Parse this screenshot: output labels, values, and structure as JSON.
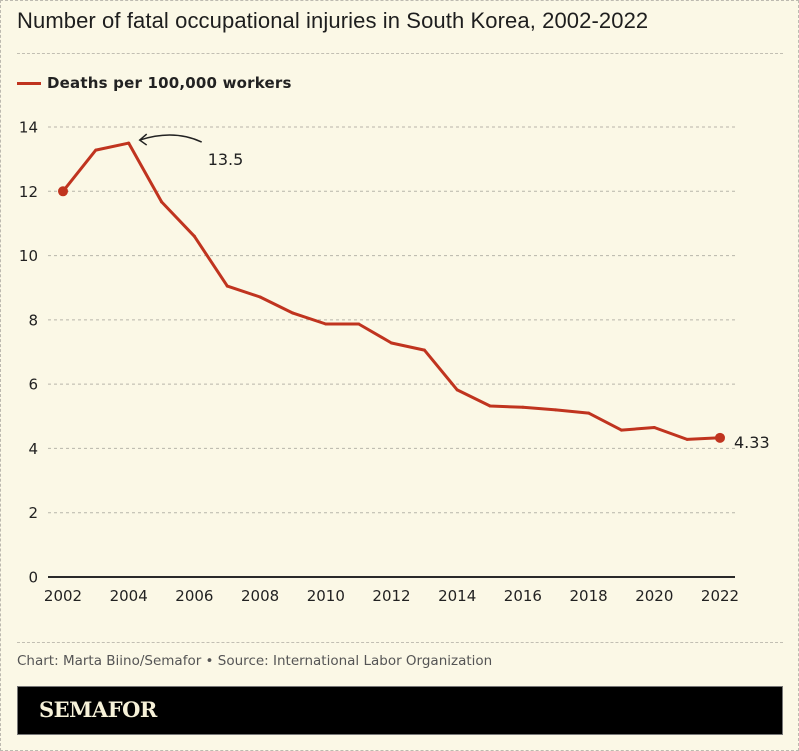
{
  "header": {
    "title": "Number of fatal occupational injuries in South Korea, 2002-2022"
  },
  "legend": {
    "label": "Deaths per 100,000 workers"
  },
  "footer": {
    "credit": "Chart: Marta Biino/Semafor • Source: International Labor Organization",
    "brand": "SEMAFOR"
  },
  "colors": {
    "background": "#fbf8e6",
    "line": "#c0341f",
    "text": "#222222",
    "grid": "#b8b5aa",
    "brandbar": "#000000"
  },
  "chart_data": {
    "type": "line",
    "title": "Number of fatal occupational injuries in South Korea, 2002-2022",
    "xlabel": "",
    "ylabel": "",
    "x": [
      2002,
      2003,
      2004,
      2005,
      2006,
      2007,
      2008,
      2009,
      2010,
      2011,
      2012,
      2013,
      2014,
      2015,
      2016,
      2017,
      2018,
      2019,
      2020,
      2021,
      2022
    ],
    "series": [
      {
        "name": "Deaths per 100,000 workers",
        "values": [
          12.0,
          13.28,
          13.5,
          11.67,
          10.6,
          9.05,
          8.71,
          8.21,
          7.87,
          7.87,
          7.28,
          7.06,
          5.82,
          5.32,
          5.28,
          5.2,
          5.1,
          4.57,
          4.65,
          4.28,
          4.33
        ]
      }
    ],
    "xlim": [
      2002,
      2022
    ],
    "ylim": [
      0,
      14
    ],
    "xticks": [
      "2002",
      "2004",
      "2006",
      "2008",
      "2010",
      "2012",
      "2014",
      "2016",
      "2018",
      "2020",
      "2022"
    ],
    "yticks": [
      "0",
      "2",
      "4",
      "6",
      "8",
      "10",
      "12",
      "14"
    ],
    "grid": true,
    "legend_position": "top-left",
    "annotations": [
      {
        "x": 2004,
        "y": 13.5,
        "text": "13.5",
        "style": "curved-arrow"
      },
      {
        "x": 2022,
        "y": 4.33,
        "text": "4.33",
        "style": "end-label"
      }
    ],
    "markers": [
      {
        "x": 2002,
        "y": 12.0
      },
      {
        "x": 2022,
        "y": 4.33
      }
    ]
  }
}
